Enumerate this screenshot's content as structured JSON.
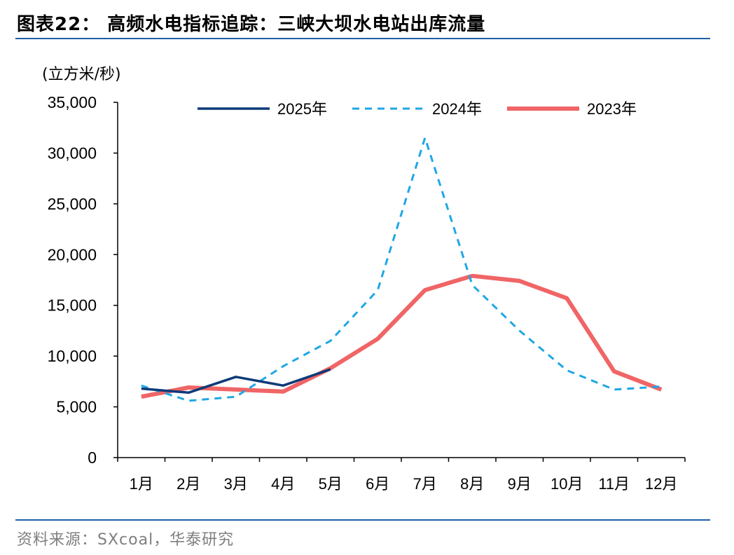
{
  "header": {
    "title": "图表22：  高频水电指标追踪：三峡大坝水电站出库流量"
  },
  "footer": {
    "source": "资料来源：SXcoal，华泰研究"
  },
  "colors": {
    "2025年": "#0d3a78",
    "2024年": "#1ea7e6",
    "2023年": "#f06566",
    "rule": "#1f5fa8"
  },
  "chart_data": {
    "type": "line",
    "title": "",
    "ylabel": "(立方米/秒)",
    "xlabel": "",
    "ylim": [
      0,
      35000
    ],
    "yticks": [
      0,
      5000,
      10000,
      15000,
      20000,
      25000,
      30000,
      35000
    ],
    "ytick_labels": [
      "0",
      "5,000",
      "10,000",
      "15,000",
      "20,000",
      "25,000",
      "30,000",
      "35,000"
    ],
    "categories": [
      "1月",
      "2月",
      "3月",
      "4月",
      "5月",
      "6月",
      "7月",
      "8月",
      "9月",
      "10月",
      "11月",
      "12月"
    ],
    "legend_position": "top",
    "grid": false,
    "series": [
      {
        "name": "2025年",
        "style": "solid",
        "values": [
          6800,
          6400,
          7950,
          7100,
          8700,
          null,
          null,
          null,
          null,
          null,
          null,
          null
        ]
      },
      {
        "name": "2024年",
        "style": "dashed",
        "values": [
          7100,
          5600,
          6000,
          9000,
          11500,
          16500,
          31500,
          17000,
          12500,
          8600,
          6700,
          7000
        ]
      },
      {
        "name": "2023年",
        "style": "solid-thick",
        "values": [
          6000,
          6900,
          6700,
          6500,
          8800,
          11700,
          16500,
          17900,
          17400,
          15700,
          8500,
          6700
        ]
      }
    ]
  }
}
